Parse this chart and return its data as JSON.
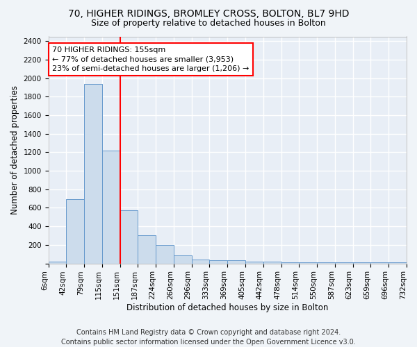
{
  "title_line1": "70, HIGHER RIDINGS, BROMLEY CROSS, BOLTON, BL7 9HD",
  "title_line2": "Size of property relative to detached houses in Bolton",
  "xlabel": "Distribution of detached houses by size in Bolton",
  "ylabel": "Number of detached properties",
  "bar_values": [
    20,
    690,
    1940,
    1220,
    570,
    305,
    200,
    90,
    45,
    35,
    35,
    20,
    20,
    15,
    15,
    10,
    10,
    10,
    10,
    10
  ],
  "bar_labels": [
    "6sqm",
    "42sqm",
    "79sqm",
    "115sqm",
    "151sqm",
    "187sqm",
    "224sqm",
    "260sqm",
    "296sqm",
    "333sqm",
    "369sqm",
    "405sqm",
    "442sqm",
    "478sqm",
    "514sqm",
    "550sqm",
    "587sqm",
    "623sqm",
    "659sqm",
    "696sqm",
    "732sqm"
  ],
  "bar_color": "#ccdcec",
  "bar_edge_color": "#6699cc",
  "vline_color": "red",
  "vline_x_index": 4,
  "annotation_text": "70 HIGHER RIDINGS: 155sqm\n← 77% of detached houses are smaller (3,953)\n23% of semi-detached houses are larger (1,206) →",
  "annotation_box_color": "white",
  "annotation_box_edge_color": "red",
  "ylim": [
    0,
    2450
  ],
  "yticks": [
    0,
    200,
    400,
    600,
    800,
    1000,
    1200,
    1400,
    1600,
    1800,
    2000,
    2200,
    2400
  ],
  "footnote": "Contains HM Land Registry data © Crown copyright and database right 2024.\nContains public sector information licensed under the Open Government Licence v3.0.",
  "background_color": "#f0f4f8",
  "plot_background_color": "#e8eef6",
  "grid_color": "white",
  "title_fontsize": 10,
  "subtitle_fontsize": 9,
  "axis_label_fontsize": 8.5,
  "tick_fontsize": 7.5,
  "annotation_fontsize": 8,
  "footnote_fontsize": 7
}
